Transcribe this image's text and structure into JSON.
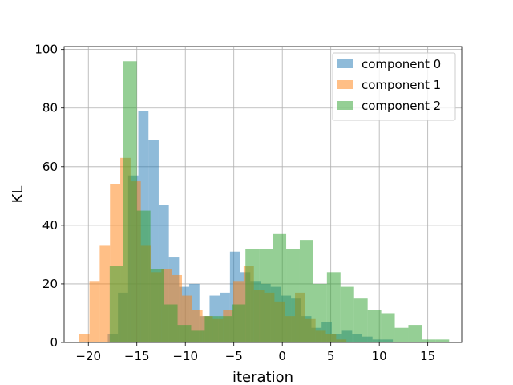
{
  "chart_data": {
    "type": "histogram",
    "title": "",
    "xlabel": "iteration",
    "ylabel": "KL",
    "xlim": [
      -22.5,
      18.5
    ],
    "ylim": [
      0,
      101
    ],
    "xticks": [
      -20,
      -15,
      -10,
      -5,
      0,
      5,
      10,
      15
    ],
    "xtick_labels": [
      "−20",
      "−15",
      "−10",
      "−5",
      "0",
      "5",
      "10",
      "15"
    ],
    "yticks": [
      0,
      20,
      40,
      60,
      80,
      100
    ],
    "ytick_labels": [
      "0",
      "20",
      "40",
      "60",
      "80",
      "100"
    ],
    "grid": true,
    "legend_position": "upper right",
    "alpha": 0.5,
    "series": [
      {
        "name": "component 0",
        "color": "#1f77b4",
        "bin_width": 1.05,
        "bin_starts": [
          -18.0,
          -16.95,
          -15.9,
          -14.85,
          -13.8,
          -12.75,
          -11.7,
          -10.65,
          -9.6,
          -8.55,
          -7.5,
          -6.45,
          -5.4,
          -4.35,
          -3.3,
          -2.25,
          -1.2,
          -0.15,
          0.9,
          1.95,
          3.0,
          4.05,
          5.1,
          6.15,
          7.2,
          8.25,
          9.3,
          10.35
        ],
        "counts": [
          3,
          17,
          57,
          79,
          69,
          47,
          29,
          19,
          20,
          9,
          16,
          17,
          31,
          24,
          21,
          20,
          19,
          16,
          15,
          9,
          5,
          7,
          3,
          4,
          3,
          2,
          1,
          1
        ]
      },
      {
        "name": "component 1",
        "color": "#ff7f0e",
        "bin_width": 1.06,
        "bin_starts": [
          -20.95,
          -19.89,
          -18.83,
          -17.77,
          -16.71,
          -15.65,
          -14.59,
          -13.53,
          -12.47,
          -11.41,
          -10.35,
          -9.29,
          -8.23,
          -7.17,
          -6.11,
          -5.05,
          -3.99,
          -2.93,
          -1.87,
          -0.81,
          0.25,
          1.31,
          2.37,
          3.43,
          4.49,
          5.55
        ],
        "counts": [
          3,
          21,
          33,
          54,
          63,
          55,
          33,
          24,
          25,
          23,
          16,
          11,
          9,
          8,
          11,
          21,
          26,
          18,
          17,
          14,
          9,
          17,
          8,
          4,
          3,
          1
        ]
      },
      {
        "name": "component 2",
        "color": "#2ca02c",
        "bin_width": 1.4,
        "bin_starts": [
          -17.8,
          -16.4,
          -15.0,
          -13.6,
          -12.2,
          -10.8,
          -9.4,
          -8.0,
          -6.6,
          -5.2,
          -3.8,
          -2.4,
          -1.0,
          0.4,
          1.8,
          3.2,
          4.6,
          6.0,
          7.4,
          8.8,
          10.2,
          11.6,
          13.0,
          14.4,
          15.8
        ],
        "counts": [
          26,
          96,
          45,
          25,
          13,
          6,
          4,
          9,
          9,
          13,
          32,
          32,
          37,
          32,
          35,
          20,
          24,
          19,
          15,
          11,
          10,
          5,
          6,
          1,
          1
        ]
      }
    ]
  }
}
